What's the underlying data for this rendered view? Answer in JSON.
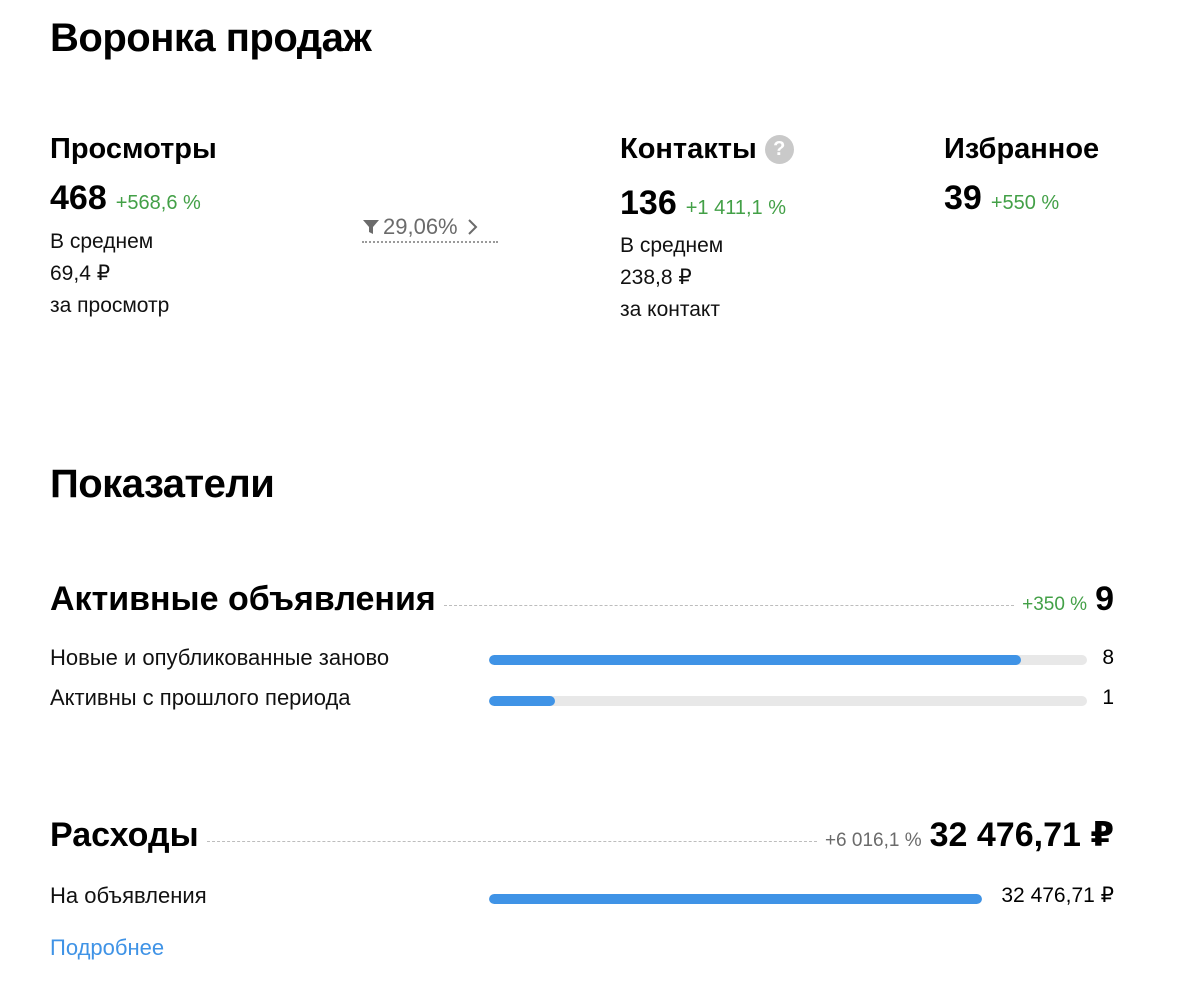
{
  "funnel": {
    "title": "Воронка продаж",
    "views": {
      "label": "Просмотры",
      "value": "468",
      "delta": "+568,6 %",
      "avg_line1": "В среднем",
      "avg_line2": "69,4 ₽",
      "avg_line3": "за просмотр"
    },
    "conversion": {
      "value": "29,06%",
      "icon": "filter-icon",
      "chevron": "›"
    },
    "contacts": {
      "label": "Контакты",
      "help_icon": "?",
      "value": "136",
      "delta": "+1 411,1 %",
      "avg_line1": "В среднем",
      "avg_line2": "238,8 ₽",
      "avg_line3": "за контакт"
    },
    "favorites": {
      "label": "Избранное",
      "value": "39",
      "delta": "+550 %"
    }
  },
  "metrics": {
    "title": "Показатели",
    "active_ads": {
      "title": "Активные объявления",
      "delta": "+350 %",
      "delta_color": "#43a047",
      "total": "9",
      "rows": [
        {
          "label": "Новые и опубликованные заново",
          "value": "8",
          "fraction": 0.889
        },
        {
          "label": "Активны с прошлого периода",
          "value": "1",
          "fraction": 0.111
        }
      ]
    },
    "expenses": {
      "title": "Расходы",
      "delta": "+6 016,1 %",
      "delta_color": "#6b6b6b",
      "total": "32 476,71 ₽",
      "rows": [
        {
          "label": "На объявления",
          "value": "32 476,71 ₽",
          "fraction": 1.0
        }
      ]
    },
    "more_link": "Подробнее"
  },
  "colors": {
    "accent": "#3f93e6",
    "positive": "#43a047",
    "bar_track": "#e8e8e8"
  }
}
